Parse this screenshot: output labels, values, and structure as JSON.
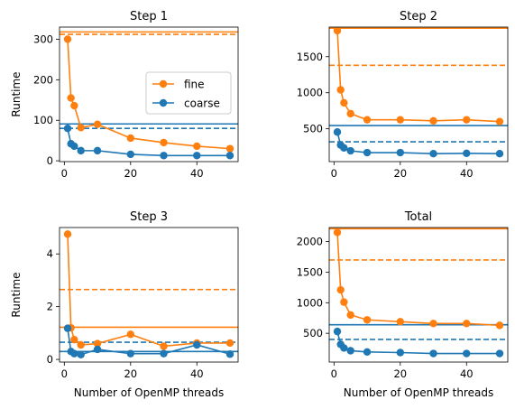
{
  "colors": {
    "fine": "#ff7f0e",
    "coarse": "#1f77b4"
  },
  "legend": {
    "fine": "fine",
    "coarse": "coarse",
    "placement": "center-right",
    "in_panel": 0
  },
  "chart_data": [
    {
      "type": "line",
      "title": "Step 1",
      "xlabel": "",
      "ylabel": "Runtime",
      "xlim": [
        -1.45,
        52.45
      ],
      "ylim": [
        -2,
        330
      ],
      "xticks": [
        0,
        20,
        40
      ],
      "yticks": [
        0,
        100,
        200,
        300
      ],
      "x": [
        1,
        2,
        3,
        5,
        10,
        20,
        30,
        40,
        50
      ],
      "series": [
        {
          "name": "fine",
          "color": "#ff7f0e",
          "values": [
            300,
            155,
            136,
            82,
            90,
            56,
            45,
            36,
            30
          ],
          "solid_ref": 318,
          "dashed_ref": 312
        },
        {
          "name": "coarse",
          "color": "#1f77b4",
          "values": [
            80,
            42,
            36,
            25,
            25,
            16,
            13,
            13,
            13
          ],
          "solid_ref": 91,
          "dashed_ref": 80
        }
      ]
    },
    {
      "type": "line",
      "title": "Step 2",
      "xlabel": "",
      "ylabel": "",
      "xlim": [
        -1.45,
        52.45
      ],
      "ylim": [
        45,
        1910
      ],
      "xticks": [
        0,
        20,
        40
      ],
      "yticks": [
        500,
        1000,
        1500
      ],
      "x": [
        1,
        2,
        3,
        5,
        10,
        20,
        30,
        40,
        50
      ],
      "series": [
        {
          "name": "fine",
          "color": "#ff7f0e",
          "values": [
            1860,
            1040,
            860,
            710,
            625,
            625,
            610,
            625,
            600
          ],
          "solid_ref": 1895,
          "dashed_ref": 1380
        },
        {
          "name": "coarse",
          "color": "#1f77b4",
          "values": [
            455,
            275,
            235,
            195,
            170,
            170,
            155,
            160,
            155
          ],
          "solid_ref": 545,
          "dashed_ref": 320
        }
      ]
    },
    {
      "type": "line",
      "title": "Step 3",
      "xlabel": "Number of OpenMP threads",
      "ylabel": "Runtime",
      "xlim": [
        -1.45,
        52.45
      ],
      "ylim": [
        -0.1,
        5.0
      ],
      "xticks": [
        0,
        20,
        40
      ],
      "yticks": [
        0,
        2,
        4
      ],
      "x": [
        1,
        2,
        3,
        5,
        10,
        20,
        30,
        40,
        50
      ],
      "series": [
        {
          "name": "fine",
          "color": "#ff7f0e",
          "values": [
            4.75,
            1.2,
            0.75,
            0.55,
            0.6,
            0.95,
            0.5,
            0.62,
            0.62
          ],
          "solid_ref": 1.22,
          "dashed_ref": 2.65
        },
        {
          "name": "coarse",
          "color": "#1f77b4",
          "values": [
            1.18,
            0.3,
            0.22,
            0.18,
            0.38,
            0.22,
            0.22,
            0.55,
            0.2
          ],
          "solid_ref": 0.3,
          "dashed_ref": 0.65
        }
      ]
    },
    {
      "type": "line",
      "title": "Total",
      "xlabel": "Number of OpenMP threads",
      "ylabel": "",
      "xlim": [
        -1.45,
        52.45
      ],
      "ylim": [
        30,
        2230
      ],
      "xticks": [
        0,
        20,
        40
      ],
      "yticks": [
        500,
        1000,
        1500,
        2000
      ],
      "x": [
        1,
        2,
        3,
        5,
        10,
        20,
        30,
        40,
        50
      ],
      "series": [
        {
          "name": "fine",
          "color": "#ff7f0e",
          "values": [
            2150,
            1210,
            1010,
            800,
            720,
            690,
            660,
            660,
            630
          ],
          "solid_ref": 2210,
          "dashed_ref": 1700
        },
        {
          "name": "coarse",
          "color": "#1f77b4",
          "values": [
            530,
            320,
            260,
            215,
            195,
            185,
            170,
            170,
            170
          ],
          "solid_ref": 640,
          "dashed_ref": 400
        }
      ]
    }
  ]
}
